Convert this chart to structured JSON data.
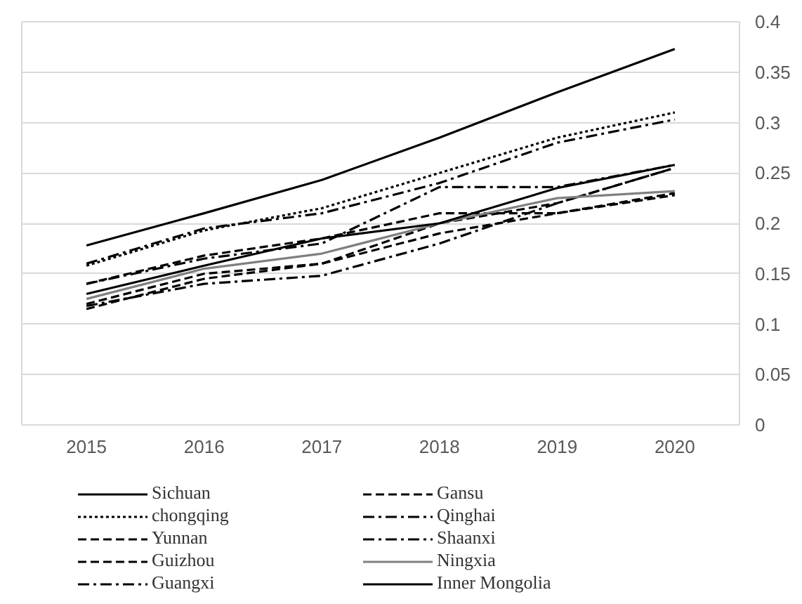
{
  "chart_data": {
    "type": "line",
    "categories": [
      "2015",
      "2016",
      "2017",
      "2018",
      "2019",
      "2020"
    ],
    "series": [
      {
        "name": "Sichuan",
        "color": "#000000",
        "line_style": "solid",
        "values": [
          0.178,
          0.21,
          0.243,
          0.285,
          0.33,
          0.373
        ]
      },
      {
        "name": "chongqing",
        "color": "#000000",
        "line_style": "dotted",
        "values": [
          0.158,
          0.193,
          0.215,
          0.25,
          0.285,
          0.31
        ]
      },
      {
        "name": "Yunnan",
        "color": "#000000",
        "line_style": "dashed",
        "values": [
          0.12,
          0.15,
          0.16,
          0.19,
          0.21,
          0.23
        ]
      },
      {
        "name": "Guizhou",
        "color": "#000000",
        "line_style": "dashed",
        "values": [
          0.115,
          0.145,
          0.16,
          0.2,
          0.22,
          0.255
        ]
      },
      {
        "name": "Guangxi",
        "color": "#000000",
        "line_style": "dashdot",
        "values": [
          0.118,
          0.14,
          0.148,
          0.18,
          0.22,
          0.255
        ]
      },
      {
        "name": "Gansu",
        "color": "#000000",
        "line_style": "dashed",
        "values": [
          0.14,
          0.168,
          0.185,
          0.21,
          0.21,
          0.228
        ]
      },
      {
        "name": "Qinghai",
        "color": "#000000",
        "line_style": "dashdot",
        "values": [
          0.14,
          0.165,
          0.18,
          0.236,
          0.236,
          0.258
        ]
      },
      {
        "name": "Shaanxi",
        "color": "#000000",
        "line_style": "dashdot",
        "values": [
          0.16,
          0.195,
          0.21,
          0.24,
          0.28,
          0.303
        ]
      },
      {
        "name": "Ningxia",
        "color": "#808080",
        "line_style": "solid",
        "values": [
          0.125,
          0.155,
          0.17,
          0.2,
          0.225,
          0.232
        ]
      },
      {
        "name": "Inner Mongolia",
        "color": "#000000",
        "line_style": "solid",
        "values": [
          0.13,
          0.158,
          0.185,
          0.2,
          0.235,
          0.258
        ]
      }
    ],
    "ylim": [
      0,
      0.4
    ],
    "yticks": [
      0,
      0.05,
      0.1,
      0.15,
      0.2,
      0.25,
      0.3,
      0.35,
      0.4
    ],
    "grid": "y",
    "legend": "bottom",
    "marker": "none"
  }
}
